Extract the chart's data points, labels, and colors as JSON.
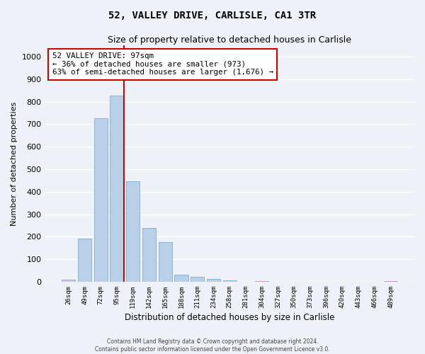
{
  "title1": "52, VALLEY DRIVE, CARLISLE, CA1 3TR",
  "title2": "Size of property relative to detached houses in Carlisle",
  "xlabel": "Distribution of detached houses by size in Carlisle",
  "ylabel": "Number of detached properties",
  "categories": [
    "26sqm",
    "49sqm",
    "72sqm",
    "95sqm",
    "119sqm",
    "142sqm",
    "165sqm",
    "188sqm",
    "211sqm",
    "234sqm",
    "258sqm",
    "281sqm",
    "304sqm",
    "327sqm",
    "350sqm",
    "373sqm",
    "396sqm",
    "420sqm",
    "443sqm",
    "466sqm",
    "489sqm"
  ],
  "values": [
    10,
    193,
    728,
    828,
    447,
    238,
    175,
    32,
    22,
    13,
    5,
    0,
    2,
    0,
    0,
    0,
    0,
    0,
    0,
    0,
    3
  ],
  "bar_color": "#b8d0e8",
  "bar_edge_color": "#7aafd4",
  "highlight_line_color": "#cc0000",
  "annotation_text": "52 VALLEY DRIVE: 97sqm\n← 36% of detached houses are smaller (973)\n63% of semi-detached houses are larger (1,676) →",
  "annotation_box_color": "#ffffff",
  "annotation_box_edge_color": "#cc0000",
  "ylim": [
    0,
    1050
  ],
  "yticks": [
    0,
    100,
    200,
    300,
    400,
    500,
    600,
    700,
    800,
    900,
    1000
  ],
  "footer1": "Contains HM Land Registry data © Crown copyright and database right 2024.",
  "footer2": "Contains public sector information licensed under the Open Government Licence v3.0.",
  "bg_color": "#eef2f8",
  "grid_color": "#ffffff"
}
